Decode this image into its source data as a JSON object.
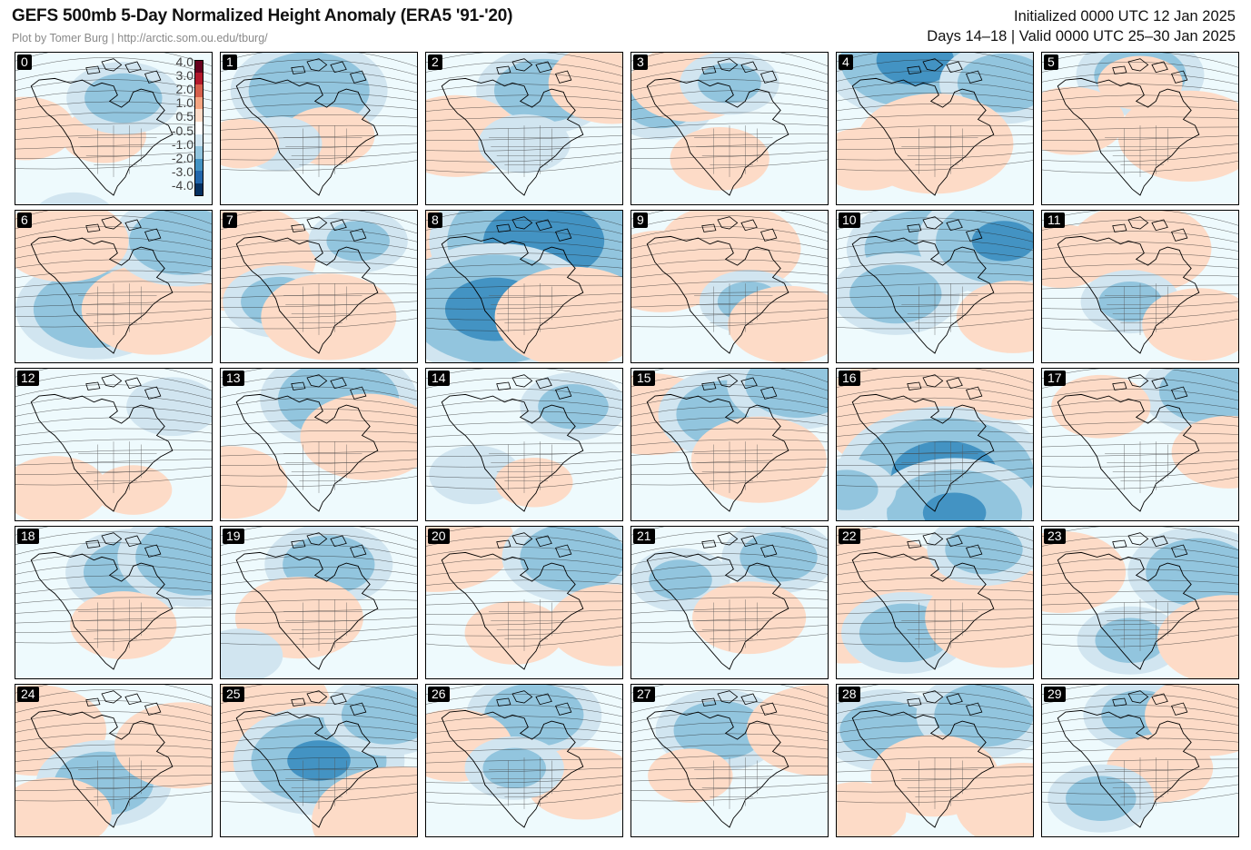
{
  "header": {
    "title": "GEFS 500mb 5-Day Normalized Height Anomaly (ERA5 '91-'20)",
    "credit": "Plot by Tomer Burg | http://arctic.som.ou.edu/tburg/",
    "initialized": "Initialized 0000 UTC 12 Jan 2025",
    "valid": "Days 14–18 | Valid 0000 UTC 25–30 Jan 2025"
  },
  "colorbar": {
    "labels": [
      "4.0",
      "3.0",
      "2.0",
      "1.0",
      "0.5",
      "-0.5",
      "-1.0",
      "-2.0",
      "-3.0",
      "-4.0"
    ],
    "colors": [
      "#67001f",
      "#b2182b",
      "#d6604d",
      "#f4a582",
      "#fddbc7",
      "#ffffff",
      "#d1e5f0",
      "#92c5de",
      "#4393c3",
      "#2166ac",
      "#053061"
    ]
  },
  "panels": [
    {
      "label": "0",
      "features": [
        [
          -0.6,
          0.3,
          1.1
        ],
        [
          0.6,
          0.45,
          0.55
        ],
        [
          -1.0,
          0.55,
          0.3
        ],
        [
          0.8,
          0.05,
          0.5
        ]
      ]
    },
    {
      "label": "1",
      "features": [
        [
          -1.6,
          0.45,
          0.25
        ],
        [
          0.7,
          0.55,
          0.55
        ],
        [
          -0.6,
          0.3,
          0.6
        ],
        [
          0.5,
          0.1,
          0.6
        ]
      ]
    },
    {
      "label": "2",
      "features": [
        [
          -1.3,
          0.6,
          0.25
        ],
        [
          1.2,
          0.15,
          0.55
        ],
        [
          1.2,
          0.95,
          0.2
        ],
        [
          -0.7,
          0.5,
          0.6
        ]
      ]
    },
    {
      "label": "3",
      "features": [
        [
          -0.9,
          0.15,
          0.35
        ],
        [
          1.1,
          0.3,
          0.2
        ],
        [
          0.8,
          0.45,
          0.7
        ],
        [
          -0.8,
          0.5,
          0.2
        ]
      ]
    },
    {
      "label": "4",
      "features": [
        [
          -2.0,
          0.4,
          0.05
        ],
        [
          -1.2,
          0.85,
          0.2
        ],
        [
          1.6,
          0.5,
          0.6
        ],
        [
          0.8,
          0.15,
          0.7
        ]
      ]
    },
    {
      "label": "5",
      "features": [
        [
          -1.2,
          0.5,
          0.15
        ],
        [
          1.4,
          0.75,
          0.55
        ],
        [
          0.9,
          0.15,
          0.45
        ],
        [
          0.6,
          0.5,
          0.2
        ]
      ]
    },
    {
      "label": "6",
      "features": [
        [
          -1.6,
          0.4,
          0.65
        ],
        [
          1.4,
          0.7,
          0.65
        ],
        [
          -1.4,
          0.85,
          0.2
        ],
        [
          1.2,
          0.25,
          0.2
        ]
      ]
    },
    {
      "label": "7",
      "features": [
        [
          1.8,
          0.05,
          0.3
        ],
        [
          -1.0,
          0.3,
          0.6
        ],
        [
          1.3,
          0.55,
          0.7
        ],
        [
          -0.8,
          0.7,
          0.2
        ]
      ]
    },
    {
      "label": "8",
      "features": [
        [
          2.2,
          0.05,
          0.35
        ],
        [
          -2.6,
          0.6,
          0.2
        ],
        [
          -2.3,
          0.35,
          0.65
        ],
        [
          1.6,
          0.75,
          0.7
        ]
      ]
    },
    {
      "label": "9",
      "features": [
        [
          1.2,
          0.15,
          0.4
        ],
        [
          1.4,
          0.5,
          0.25
        ],
        [
          -0.8,
          0.6,
          0.6
        ],
        [
          1.1,
          0.8,
          0.75
        ]
      ]
    },
    {
      "label": "10",
      "features": [
        [
          -1.6,
          0.45,
          0.25
        ],
        [
          -1.8,
          0.85,
          0.2
        ],
        [
          -1.2,
          0.3,
          0.55
        ],
        [
          1.0,
          0.9,
          0.7
        ]
      ]
    },
    {
      "label": "11",
      "features": [
        [
          1.4,
          0.5,
          0.25
        ],
        [
          -0.8,
          0.45,
          0.6
        ],
        [
          1.0,
          0.8,
          0.75
        ],
        [
          0.8,
          0.1,
          0.3
        ]
      ]
    },
    {
      "label": "12",
      "features": [
        [
          0.9,
          0.2,
          0.8
        ],
        [
          -0.7,
          0.8,
          0.25
        ],
        [
          0.5,
          0.6,
          0.8
        ]
      ]
    },
    {
      "label": "13",
      "features": [
        [
          -1.6,
          0.6,
          0.2
        ],
        [
          1.3,
          0.75,
          0.45
        ],
        [
          1.0,
          0.05,
          0.75
        ]
      ]
    },
    {
      "label": "14",
      "features": [
        [
          -0.9,
          0.75,
          0.25
        ],
        [
          -0.7,
          0.25,
          0.7
        ],
        [
          0.5,
          0.55,
          0.75
        ]
      ]
    },
    {
      "label": "15",
      "features": [
        [
          1.2,
          0.1,
          0.3
        ],
        [
          -1.4,
          0.5,
          0.3
        ],
        [
          -1.4,
          0.85,
          0.1
        ],
        [
          1.3,
          0.65,
          0.6
        ]
      ]
    },
    {
      "label": "16",
      "features": [
        [
          2.0,
          0.38,
          0.3
        ],
        [
          -2.4,
          0.55,
          0.7
        ],
        [
          -1.8,
          0.6,
          0.95
        ],
        [
          1.0,
          0.9,
          0.1
        ],
        [
          -0.8,
          0.05,
          0.8
        ]
      ]
    },
    {
      "label": "17",
      "features": [
        [
          -1.3,
          0.85,
          0.15
        ],
        [
          0.8,
          0.3,
          0.25
        ],
        [
          1.0,
          0.95,
          0.55
        ]
      ]
    },
    {
      "label": "18",
      "features": [
        [
          -1.3,
          0.6,
          0.3
        ],
        [
          -1.6,
          0.92,
          0.2
        ],
        [
          0.9,
          0.55,
          0.65
        ]
      ]
    },
    {
      "label": "19",
      "features": [
        [
          -1.2,
          0.55,
          0.25
        ],
        [
          1.2,
          0.4,
          0.6
        ],
        [
          -0.6,
          0.1,
          0.85
        ]
      ]
    },
    {
      "label": "20",
      "features": [
        [
          1.6,
          0.05,
          0.1
        ],
        [
          -1.4,
          0.75,
          0.2
        ],
        [
          1.2,
          0.95,
          0.65
        ],
        [
          0.8,
          0.45,
          0.7
        ]
      ]
    },
    {
      "label": "21",
      "features": [
        [
          -0.8,
          0.25,
          0.35
        ],
        [
          -1.0,
          0.75,
          0.2
        ],
        [
          1.0,
          0.6,
          0.6
        ]
      ]
    },
    {
      "label": "22",
      "features": [
        [
          2.4,
          0.05,
          0.45
        ],
        [
          -1.2,
          0.35,
          0.7
        ],
        [
          1.6,
          0.85,
          0.6
        ],
        [
          -1.0,
          0.75,
          0.15
        ]
      ]
    },
    {
      "label": "23",
      "features": [
        [
          1.2,
          0.1,
          0.3
        ],
        [
          -1.4,
          0.8,
          0.3
        ],
        [
          -0.9,
          0.45,
          0.75
        ],
        [
          1.4,
          0.95,
          0.75
        ]
      ]
    },
    {
      "label": "24",
      "features": [
        [
          1.4,
          0.1,
          0.3
        ],
        [
          -1.3,
          0.45,
          0.65
        ],
        [
          1.3,
          0.85,
          0.4
        ],
        [
          1.0,
          0.2,
          0.85
        ]
      ]
    },
    {
      "label": "25",
      "features": [
        [
          2.2,
          0.05,
          0.15
        ],
        [
          -1.8,
          0.5,
          0.5
        ],
        [
          -1.2,
          0.85,
          0.2
        ],
        [
          1.8,
          0.9,
          0.9
        ]
      ]
    },
    {
      "label": "26",
      "features": [
        [
          -1.3,
          0.55,
          0.2
        ],
        [
          1.0,
          0.8,
          0.65
        ],
        [
          1.0,
          0.15,
          0.4
        ],
        [
          -0.8,
          0.45,
          0.55
        ]
      ]
    },
    {
      "label": "27",
      "features": [
        [
          -1.2,
          0.45,
          0.3
        ],
        [
          1.4,
          0.95,
          0.3
        ],
        [
          0.6,
          0.3,
          0.6
        ]
      ]
    },
    {
      "label": "28",
      "features": [
        [
          -1.2,
          0.25,
          0.3
        ],
        [
          -1.3,
          0.75,
          0.2
        ],
        [
          1.2,
          0.5,
          0.6
        ],
        [
          1.3,
          0.95,
          0.8
        ],
        [
          0.8,
          0.1,
          0.85
        ]
      ]
    },
    {
      "label": "29",
      "features": [
        [
          -1.0,
          0.5,
          0.2
        ],
        [
          1.2,
          0.85,
          0.2
        ],
        [
          0.9,
          0.6,
          0.55
        ],
        [
          -0.9,
          0.3,
          0.75
        ]
      ]
    }
  ]
}
